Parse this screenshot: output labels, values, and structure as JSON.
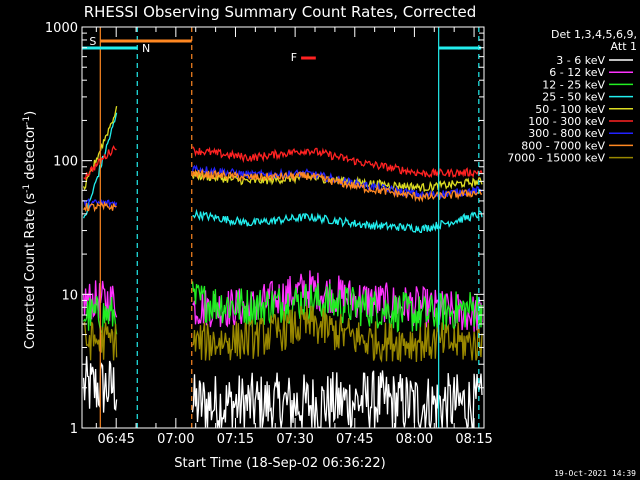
{
  "chart_data": {
    "type": "line",
    "title": "RHESSI Observing Summary Count Rates, Corrected",
    "xlabel": "Start Time (18-Sep-02 06:36:22)",
    "ylabel_main": "Corrected Count Rate (s",
    "ylabel_sup1": "-1",
    "ylabel_mid": " detector",
    "ylabel_sup2": "-1",
    "ylabel_end": ")",
    "y_scale": "log",
    "ylim": [
      1,
      1000
    ],
    "xlim_min": [
      36.4,
      137.5
    ],
    "y_ticks": [
      {
        "value": 1,
        "label": "1"
      },
      {
        "value": 10,
        "label": "10"
      },
      {
        "value": 100,
        "label": "100"
      },
      {
        "value": 1000,
        "label": "1000"
      }
    ],
    "x_ticks": [
      {
        "value": 45,
        "label": "06:45"
      },
      {
        "value": 60,
        "label": "07:00"
      },
      {
        "value": 75,
        "label": "07:15"
      },
      {
        "value": 90,
        "label": "07:30"
      },
      {
        "value": 105,
        "label": "07:45"
      },
      {
        "value": 120,
        "label": "08:00"
      },
      {
        "value": 135,
        "label": "08:15"
      }
    ],
    "legend_header": [
      "Det 1,3,4,5,6,9,",
      "Att 1"
    ],
    "legend_position": "right",
    "series": [
      {
        "name": "3 - 6 keV",
        "color": "#ffffff",
        "seg1": [
          2,
          2
        ],
        "seg2": [
          1.5,
          1.5,
          1.5,
          1.6,
          1.5,
          1.5
        ]
      },
      {
        "name": "6 - 12 keV",
        "color": "#ff33ff",
        "seg1": [
          9,
          9
        ],
        "seg2": [
          8,
          8,
          11,
          9,
          8,
          7
        ]
      },
      {
        "name": "12 - 25 keV",
        "color": "#22ee22",
        "seg1": [
          7,
          7
        ],
        "seg2": [
          9,
          8,
          9,
          8,
          7,
          8
        ]
      },
      {
        "name": "25 - 50 keV",
        "color": "#22eeee",
        "seg1": [
          35,
          220
        ],
        "seg2": [
          40,
          34,
          38,
          33,
          31,
          40
        ]
      },
      {
        "name": "50 - 100 keV",
        "color": "#dddd22",
        "seg1": [
          60,
          240
        ],
        "seg2": [
          78,
          70,
          75,
          68,
          63,
          70
        ]
      },
      {
        "name": "100 - 300 keV",
        "color": "#ff2222",
        "seg1": [
          75,
          130
        ],
        "seg2": [
          120,
          105,
          120,
          95,
          80,
          82
        ]
      },
      {
        "name": "300 - 800 keV",
        "color": "#2222ff",
        "seg1": [
          48,
          48
        ],
        "seg2": [
          88,
          78,
          80,
          65,
          55,
          60
        ]
      },
      {
        "name": "800 - 7000 keV",
        "color": "#ff8822",
        "seg1": [
          45,
          45
        ],
        "seg2": [
          80,
          75,
          77,
          62,
          53,
          58
        ]
      },
      {
        "name": "7000 - 15000 keV",
        "color": "#998800",
        "seg1": [
          4.5,
          4.5
        ],
        "seg2": [
          4.3,
          4.6,
          6,
          4.5,
          4.4,
          4.3
        ]
      }
    ],
    "flags": [
      {
        "label": "S",
        "color": "#ff8822"
      },
      {
        "label": "N",
        "color": "#22eeee"
      },
      {
        "label": "F",
        "color": "#ff2222"
      }
    ],
    "footer_date": "19-Oct-2021 14:39"
  }
}
